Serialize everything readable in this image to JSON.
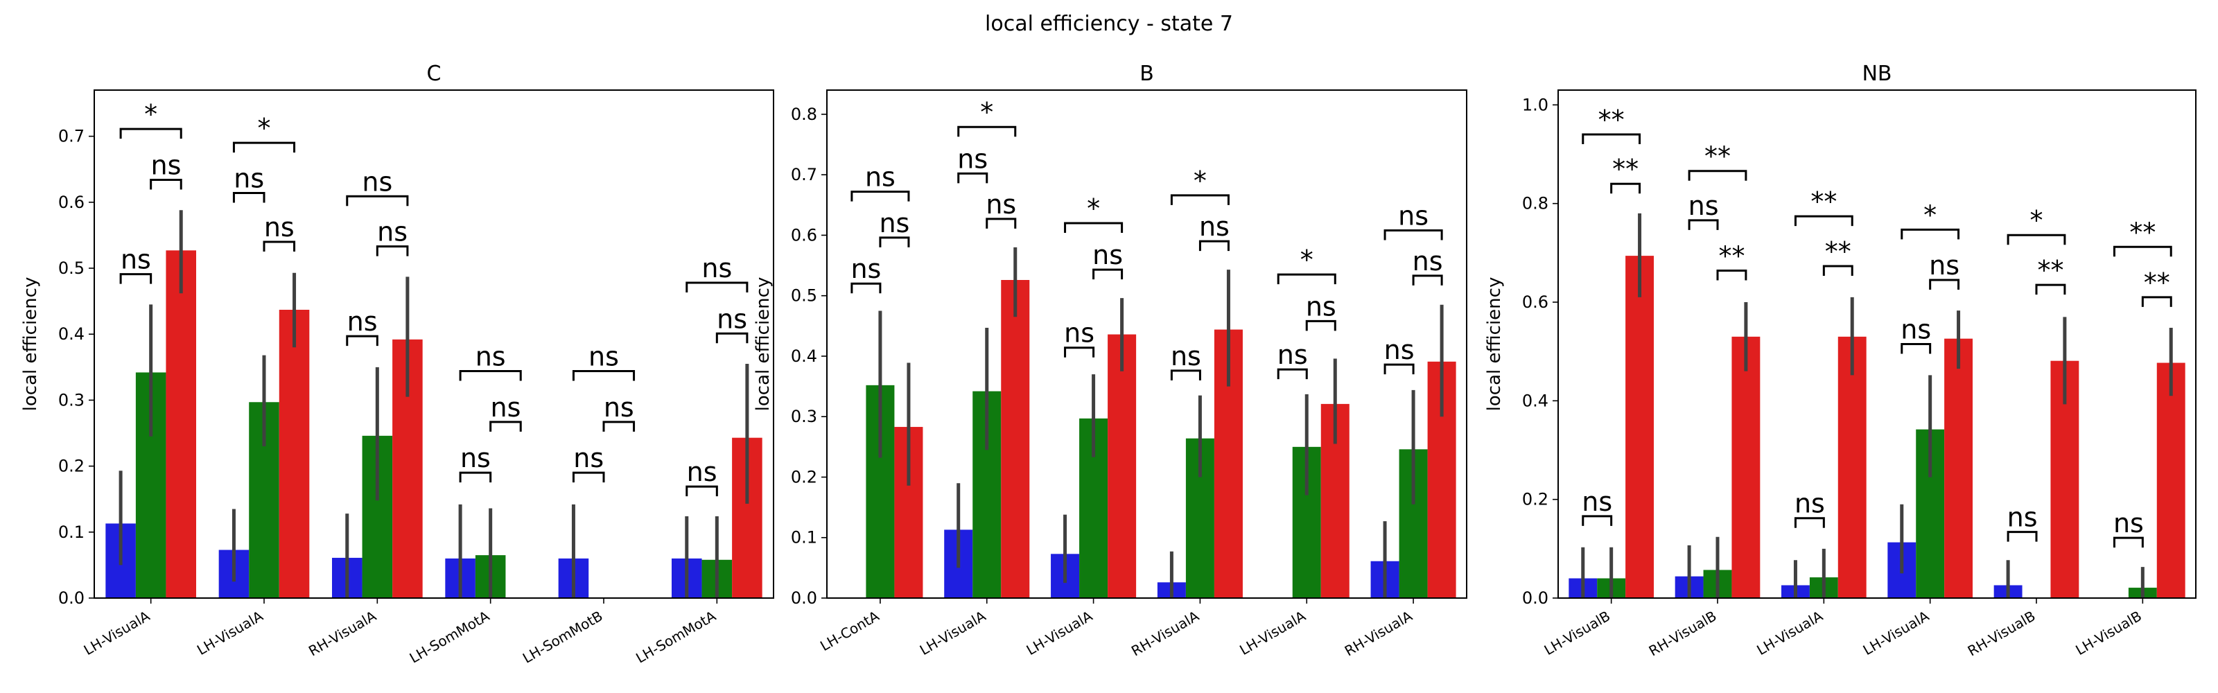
{
  "figure": {
    "title": "local efficiency - state 7"
  },
  "colors": {
    "blue": "#1f1fe0",
    "green": "#0f7a0f",
    "red": "#e01f1f",
    "err": "#404040"
  },
  "chart_data": [
    {
      "type": "bar",
      "title": "C",
      "ylabel": "local efficiency",
      "ylim": [
        0,
        0.77
      ],
      "yticks": [
        0.0,
        0.1,
        0.2,
        0.3,
        0.4,
        0.5,
        0.6,
        0.7
      ],
      "ytick_labels": [
        "0.0",
        "0.1",
        "0.2",
        "0.3",
        "0.4",
        "0.5",
        "0.6",
        "0.7"
      ],
      "categories": [
        "LH-VisualA",
        "LH-VisualA",
        "RH-VisualA",
        "LH-SomMotA",
        "LH-SomMotB",
        "LH-SomMotA"
      ],
      "series": [
        {
          "color": "blue",
          "values": [
            0.113,
            0.073,
            0.061,
            0.06,
            0.06,
            0.06
          ],
          "ci_low": [
            0.05,
            0.025,
            0.0,
            0.0,
            0.0,
            0.0
          ],
          "ci_high": [
            0.193,
            0.135,
            0.128,
            0.142,
            0.142,
            0.124
          ]
        },
        {
          "color": "green",
          "values": [
            0.342,
            0.297,
            0.246,
            0.065,
            0.0,
            0.058
          ],
          "ci_low": [
            0.245,
            0.23,
            0.148,
            0.0,
            0.0,
            0.0
          ],
          "ci_high": [
            0.445,
            0.368,
            0.35,
            0.136,
            0.0,
            0.124
          ]
        },
        {
          "color": "red",
          "values": [
            0.527,
            0.437,
            0.392,
            0.0,
            0.0,
            0.243
          ],
          "ci_low": [
            0.462,
            0.38,
            0.305,
            0.0,
            0.0,
            0.143
          ],
          "ci_high": [
            0.588,
            0.493,
            0.487,
            0.0,
            0.0,
            0.355
          ]
        }
      ],
      "annotations": [
        {
          "group": 0,
          "pair": [
            0,
            1
          ],
          "label": "ns",
          "level": 0.491
        },
        {
          "group": 0,
          "pair": [
            1,
            2
          ],
          "label": "ns",
          "level": 0.634
        },
        {
          "group": 0,
          "pair": [
            0,
            2
          ],
          "label": "*",
          "level": 0.711
        },
        {
          "group": 1,
          "pair": [
            0,
            1
          ],
          "label": "ns",
          "level": 0.614
        },
        {
          "group": 1,
          "pair": [
            1,
            2
          ],
          "label": "ns",
          "level": 0.54
        },
        {
          "group": 1,
          "pair": [
            0,
            2
          ],
          "label": "*",
          "level": 0.69
        },
        {
          "group": 2,
          "pair": [
            0,
            1
          ],
          "label": "ns",
          "level": 0.397
        },
        {
          "group": 2,
          "pair": [
            1,
            2
          ],
          "label": "ns",
          "level": 0.533
        },
        {
          "group": 2,
          "pair": [
            0,
            2
          ],
          "label": "ns",
          "level": 0.609
        },
        {
          "group": 3,
          "pair": [
            0,
            1
          ],
          "label": "ns",
          "level": 0.19
        },
        {
          "group": 3,
          "pair": [
            1,
            2
          ],
          "label": "ns",
          "level": 0.267
        },
        {
          "group": 3,
          "pair": [
            0,
            2
          ],
          "label": "ns",
          "level": 0.344
        },
        {
          "group": 4,
          "pair": [
            0,
            1
          ],
          "label": "ns",
          "level": 0.19
        },
        {
          "group": 4,
          "pair": [
            1,
            2
          ],
          "label": "ns",
          "level": 0.267
        },
        {
          "group": 4,
          "pair": [
            0,
            2
          ],
          "label": "ns",
          "level": 0.344
        },
        {
          "group": 5,
          "pair": [
            0,
            1
          ],
          "label": "ns",
          "level": 0.169
        },
        {
          "group": 5,
          "pair": [
            1,
            2
          ],
          "label": "ns",
          "level": 0.401
        },
        {
          "group": 5,
          "pair": [
            0,
            2
          ],
          "label": "ns",
          "level": 0.478
        }
      ]
    },
    {
      "type": "bar",
      "title": "B",
      "ylabel": "local efficiency",
      "ylim": [
        0,
        0.84
      ],
      "yticks": [
        0.0,
        0.1,
        0.2,
        0.3,
        0.4,
        0.5,
        0.6,
        0.7,
        0.8
      ],
      "ytick_labels": [
        "0.0",
        "0.1",
        "0.2",
        "0.3",
        "0.4",
        "0.5",
        "0.6",
        "0.7",
        "0.8"
      ],
      "categories": [
        "LH-ContA",
        "LH-VisualA",
        "LH-VisualA",
        "RH-VisualA",
        "LH-VisualA",
        "RH-VisualA"
      ],
      "series": [
        {
          "color": "blue",
          "values": [
            0.0,
            0.113,
            0.073,
            0.026,
            0.0,
            0.061
          ],
          "ci_low": [
            0.0,
            0.05,
            0.025,
            0.0,
            0.0,
            0.0
          ],
          "ci_high": [
            0.0,
            0.19,
            0.138,
            0.077,
            0.0,
            0.127
          ]
        },
        {
          "color": "green",
          "values": [
            0.352,
            0.342,
            0.297,
            0.264,
            0.25,
            0.246
          ],
          "ci_low": [
            0.232,
            0.245,
            0.233,
            0.2,
            0.17,
            0.155
          ],
          "ci_high": [
            0.475,
            0.447,
            0.37,
            0.335,
            0.337,
            0.344
          ]
        },
        {
          "color": "red",
          "values": [
            0.283,
            0.526,
            0.436,
            0.444,
            0.321,
            0.391
          ],
          "ci_low": [
            0.186,
            0.465,
            0.375,
            0.35,
            0.255,
            0.3
          ],
          "ci_high": [
            0.389,
            0.58,
            0.496,
            0.543,
            0.396,
            0.485
          ]
        }
      ],
      "annotations": [
        {
          "group": 0,
          "pair": [
            0,
            1
          ],
          "label": "ns",
          "level": 0.52
        },
        {
          "group": 0,
          "pair": [
            1,
            2
          ],
          "label": "ns",
          "level": 0.596
        },
        {
          "group": 0,
          "pair": [
            0,
            2
          ],
          "label": "ns",
          "level": 0.672
        },
        {
          "group": 1,
          "pair": [
            0,
            1
          ],
          "label": "ns",
          "level": 0.702
        },
        {
          "group": 1,
          "pair": [
            1,
            2
          ],
          "label": "ns",
          "level": 0.627
        },
        {
          "group": 1,
          "pair": [
            0,
            2
          ],
          "label": "*",
          "level": 0.779
        },
        {
          "group": 2,
          "pair": [
            0,
            1
          ],
          "label": "ns",
          "level": 0.414
        },
        {
          "group": 2,
          "pair": [
            1,
            2
          ],
          "label": "ns",
          "level": 0.543
        },
        {
          "group": 2,
          "pair": [
            0,
            2
          ],
          "label": "*",
          "level": 0.62
        },
        {
          "group": 3,
          "pair": [
            0,
            1
          ],
          "label": "ns",
          "level": 0.376
        },
        {
          "group": 3,
          "pair": [
            1,
            2
          ],
          "label": "ns",
          "level": 0.59
        },
        {
          "group": 3,
          "pair": [
            0,
            2
          ],
          "label": "*",
          "level": 0.666
        },
        {
          "group": 4,
          "pair": [
            0,
            1
          ],
          "label": "ns",
          "level": 0.378
        },
        {
          "group": 4,
          "pair": [
            1,
            2
          ],
          "label": "ns",
          "level": 0.458
        },
        {
          "group": 4,
          "pair": [
            0,
            2
          ],
          "label": "*",
          "level": 0.535
        },
        {
          "group": 5,
          "pair": [
            0,
            1
          ],
          "label": "ns",
          "level": 0.386
        },
        {
          "group": 5,
          "pair": [
            1,
            2
          ],
          "label": "ns",
          "level": 0.533
        },
        {
          "group": 5,
          "pair": [
            0,
            2
          ],
          "label": "ns",
          "level": 0.608
        }
      ]
    },
    {
      "type": "bar",
      "title": "NB",
      "ylabel": "local efficiency",
      "ylim": [
        0,
        1.03
      ],
      "yticks": [
        0.0,
        0.2,
        0.4,
        0.6,
        0.8,
        1.0
      ],
      "ytick_labels": [
        "0.0",
        "0.2",
        "0.4",
        "0.6",
        "0.8",
        "1.0"
      ],
      "categories": [
        "LH-VisualB",
        "RH-VisualB",
        "LH-VisualA",
        "LH-VisualA",
        "RH-VisualB",
        "LH-VisualB"
      ],
      "series": [
        {
          "color": "blue",
          "values": [
            0.04,
            0.044,
            0.026,
            0.113,
            0.026,
            0.0
          ],
          "ci_low": [
            0.0,
            0.0,
            0.0,
            0.05,
            0.0,
            0.0
          ],
          "ci_high": [
            0.103,
            0.107,
            0.077,
            0.19,
            0.077,
            0.0
          ]
        },
        {
          "color": "green",
          "values": [
            0.04,
            0.057,
            0.042,
            0.342,
            0.0,
            0.021
          ],
          "ci_low": [
            0.0,
            0.0,
            0.0,
            0.245,
            0.0,
            0.0
          ],
          "ci_high": [
            0.103,
            0.124,
            0.1,
            0.452,
            0.0,
            0.063
          ]
        },
        {
          "color": "red",
          "values": [
            0.694,
            0.53,
            0.53,
            0.526,
            0.481,
            0.477
          ],
          "ci_low": [
            0.61,
            0.46,
            0.452,
            0.465,
            0.393,
            0.41
          ],
          "ci_high": [
            0.78,
            0.6,
            0.61,
            0.583,
            0.57,
            0.548
          ]
        }
      ],
      "annotations": [
        {
          "group": 0,
          "pair": [
            0,
            1
          ],
          "label": "ns",
          "level": 0.166
        },
        {
          "group": 0,
          "pair": [
            1,
            2
          ],
          "label": "**",
          "level": 0.84
        },
        {
          "group": 0,
          "pair": [
            0,
            2
          ],
          "label": "**",
          "level": 0.94
        },
        {
          "group": 1,
          "pair": [
            0,
            1
          ],
          "label": "ns",
          "level": 0.766
        },
        {
          "group": 1,
          "pair": [
            1,
            2
          ],
          "label": "**",
          "level": 0.664
        },
        {
          "group": 1,
          "pair": [
            0,
            2
          ],
          "label": "**",
          "level": 0.866
        },
        {
          "group": 2,
          "pair": [
            0,
            1
          ],
          "label": "ns",
          "level": 0.162
        },
        {
          "group": 2,
          "pair": [
            1,
            2
          ],
          "label": "**",
          "level": 0.673
        },
        {
          "group": 2,
          "pair": [
            0,
            2
          ],
          "label": "**",
          "level": 0.774
        },
        {
          "group": 3,
          "pair": [
            0,
            1
          ],
          "label": "ns",
          "level": 0.515
        },
        {
          "group": 3,
          "pair": [
            1,
            2
          ],
          "label": "ns",
          "level": 0.645
        },
        {
          "group": 3,
          "pair": [
            0,
            2
          ],
          "label": "*",
          "level": 0.747
        },
        {
          "group": 4,
          "pair": [
            0,
            1
          ],
          "label": "ns",
          "level": 0.134
        },
        {
          "group": 4,
          "pair": [
            1,
            2
          ],
          "label": "**",
          "level": 0.635
        },
        {
          "group": 4,
          "pair": [
            0,
            2
          ],
          "label": "*",
          "level": 0.736
        },
        {
          "group": 5,
          "pair": [
            0,
            1
          ],
          "label": "ns",
          "level": 0.122
        },
        {
          "group": 5,
          "pair": [
            1,
            2
          ],
          "label": "**",
          "level": 0.61
        },
        {
          "group": 5,
          "pair": [
            0,
            2
          ],
          "label": "**",
          "level": 0.712
        }
      ]
    }
  ]
}
